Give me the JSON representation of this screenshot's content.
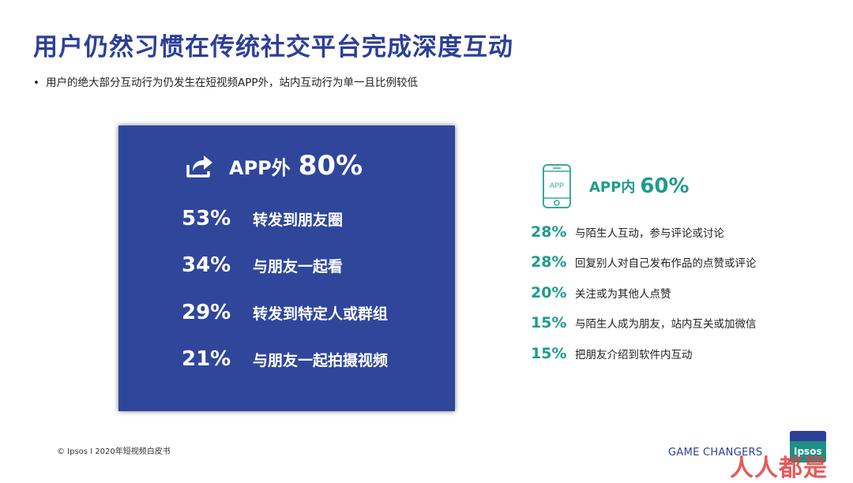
{
  "header": {
    "title": "用户仍然习惯在传统社交平台完成深度互动",
    "subtitle_bullet": "•",
    "subtitle": "用户的绝大部分互动行为仍发生在短视频APP外，站内互动行为单一且比例较低"
  },
  "outside_app": {
    "icon": "share-icon",
    "label": "APP外",
    "percent": "80%",
    "items": [
      {
        "percent": "53%",
        "label": "转发到朋友圈"
      },
      {
        "percent": "34%",
        "label": "与朋友一起看"
      },
      {
        "percent": "29%",
        "label": "转发到特定人或群组"
      },
      {
        "percent": "21%",
        "label": "与朋友一起拍摄视频"
      }
    ]
  },
  "inside_app": {
    "icon": "phone-app-icon",
    "icon_text": "APP",
    "label": "APP内",
    "percent": "60%",
    "items": [
      {
        "percent": "28%",
        "label": "与陌生人互动，参与评论或讨论"
      },
      {
        "percent": "28%",
        "label": "回复别人对自己发布作品的点赞或评论"
      },
      {
        "percent": "20%",
        "label": "关注或为其他人点赞"
      },
      {
        "percent": "15%",
        "label": "与陌生人成为朋友，站内互关或加微信"
      },
      {
        "percent": "15%",
        "label": "把朋友介绍到软件内互动"
      }
    ]
  },
  "footer": {
    "copyright": "© Ipsos I 2020年短视频白皮书",
    "series": "GAME CHANGERS",
    "logo_text": "Ipsos",
    "watermark": "人人都是"
  },
  "colors": {
    "title_blue": "#2d3f97",
    "box_blue": "#2f469b",
    "teal": "#1f9b8c"
  }
}
